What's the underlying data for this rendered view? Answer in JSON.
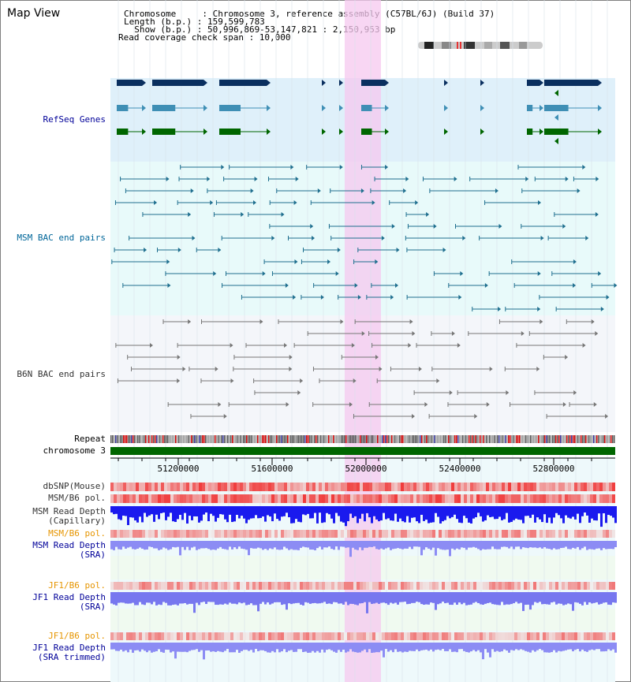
{
  "title": "Map View",
  "info": {
    "line1": "Chromosome     : Chromosome 3, reference assembly (C57BL/6J) (Build 37)",
    "line2": "Length (b.p.) : 159,599,783",
    "line3": "  Show (b.p.) : 50,996,869-53,147,821 : 2,150,953 bp",
    "line4": "Read coverage check span : 10,000"
  },
  "tracks": {
    "refseq": "RefSeq Genes",
    "msm_bac": "MSM BAC end pairs",
    "b6n_bac": "B6N BAC end pairs",
    "repeat": "Repeat",
    "chrom": "chromosome 3",
    "dbsnp": "dbSNP(Mouse)",
    "msm_pol": "MSM/B6 pol.",
    "msm_depth_cap": "MSM Read Depth\n(Capillary)",
    "msm_pol2": "MSM/B6 pol.",
    "msm_depth_sra": "MSM Read Depth\n(SRA)",
    "jf1_pol": "JF1/B6 pol.",
    "jf1_depth_sra": "JF1 Read Depth\n(SRA)",
    "jf1_pol2": "JF1/B6 pol.",
    "jf1_depth_trim": "JF1 Read Depth\n(SRA trimmed)"
  },
  "axis": {
    "ticks": [
      "51200000",
      "51600000",
      "52000000",
      "52400000",
      "52800000"
    ]
  },
  "colors": {
    "refseq_bg": "#dff0fa",
    "msm_bg": "#e8fafa",
    "b6n_bg": "#f4f6fa",
    "highlight": "#f6c8ef",
    "chrom": "#006600",
    "navy": "#0a2f5f",
    "teal": "#3f8fb5",
    "green": "#006600"
  }
}
